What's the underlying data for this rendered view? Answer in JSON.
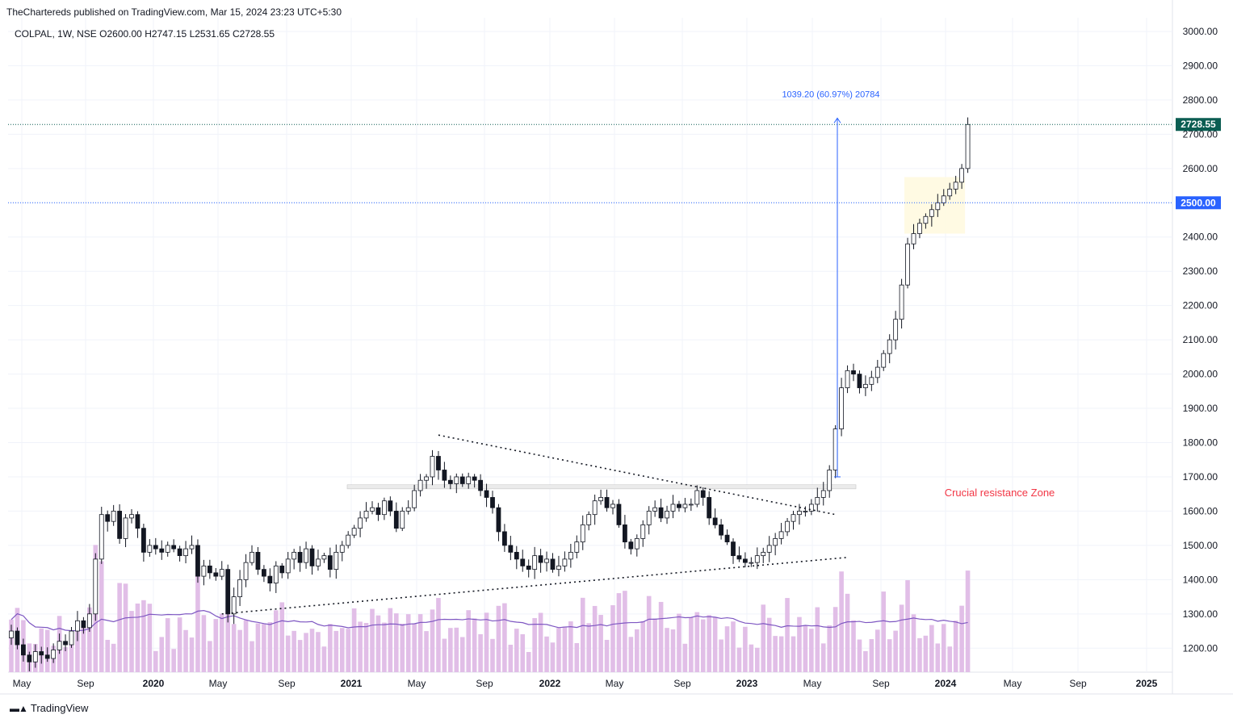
{
  "header": {
    "publish_line": "TheChartereds published on TradingView.com, Mar 15, 2024 23:23 UTC+5:30"
  },
  "footer": {
    "brand": "TradingView"
  },
  "colors": {
    "up": "#26a69a",
    "down": "#ef5350",
    "volume": "#e1bee7",
    "vol_ma": "#7e57c2",
    "measure": "#2962ff",
    "resistance_label": "#f23645",
    "zone_fill": "#fff9e0"
  },
  "chart_data": {
    "type": "candlestick",
    "title": "COLPAL, 1W, NSE",
    "legend": {
      "symbol": "COLPAL, 1W, NSE",
      "open": "O2600.00",
      "high": "H2747.15",
      "low": "L2531.65",
      "close": "C2728.55"
    },
    "ylim": [
      1130,
      3040
    ],
    "y_ticks": [
      "1200.00",
      "1300.00",
      "1400.00",
      "1500.00",
      "1600.00",
      "1700.00",
      "1800.00",
      "1900.00",
      "2000.00",
      "2100.00",
      "2200.00",
      "2300.00",
      "2400.00",
      "2500.00",
      "2600.00",
      "2700.00",
      "2800.00",
      "2900.00",
      "3000.00"
    ],
    "x_ticks": [
      "May",
      "Sep",
      "2020",
      "May",
      "Sep",
      "2021",
      "May",
      "Sep",
      "2022",
      "May",
      "Sep",
      "2023",
      "May",
      "Sep",
      "2024",
      "May",
      "Sep",
      "2025"
    ],
    "last_price": {
      "value": 2728.55,
      "label": "2728.55"
    },
    "level_line": {
      "value": 2500,
      "label": "2500.00"
    },
    "measure": {
      "from": 1700,
      "to": 2747,
      "label": "1039.20 (60.97%) 20784"
    },
    "resistance_zone": {
      "low": 1665,
      "high": 1677,
      "label": "Crucial resistance Zone"
    },
    "trendlines": [
      {
        "name": "descending",
        "from": {
          "week": 71,
          "price": 1822
        },
        "to": {
          "week": 137,
          "price": 1590
        }
      },
      {
        "name": "ascending",
        "from": {
          "week": 35,
          "price": 1300
        },
        "to": {
          "week": 139,
          "price": 1465
        }
      }
    ],
    "consolidation_box": {
      "from_week": 149,
      "to_week": 158,
      "low": 2410,
      "high": 2575
    },
    "closes": [
      1250,
      1210,
      1180,
      1160,
      1190,
      1180,
      1170,
      1195,
      1220,
      1210,
      1250,
      1280,
      1260,
      1300,
      1460,
      1590,
      1570,
      1600,
      1520,
      1580,
      1590,
      1550,
      1480,
      1500,
      1490,
      1480,
      1500,
      1490,
      1470,
      1490,
      1500,
      1410,
      1440,
      1420,
      1410,
      1430,
      1300,
      1350,
      1400,
      1450,
      1480,
      1430,
      1410,
      1390,
      1440,
      1420,
      1460,
      1480,
      1450,
      1490,
      1440,
      1460,
      1470,
      1430,
      1480,
      1500,
      1530,
      1550,
      1580,
      1600,
      1610,
      1590,
      1630,
      1600,
      1550,
      1600,
      1610,
      1660,
      1690,
      1700,
      1760,
      1720,
      1690,
      1680,
      1700,
      1680,
      1700,
      1690,
      1660,
      1640,
      1610,
      1540,
      1500,
      1480,
      1460,
      1440,
      1430,
      1470,
      1450,
      1460,
      1430,
      1440,
      1460,
      1480,
      1510,
      1560,
      1590,
      1630,
      1640,
      1610,
      1620,
      1560,
      1510,
      1490,
      1520,
      1560,
      1600,
      1610,
      1580,
      1600,
      1620,
      1610,
      1620,
      1620,
      1660,
      1640,
      1580,
      1560,
      1530,
      1510,
      1470,
      1460,
      1450,
      1450,
      1470,
      1480,
      1500,
      1520,
      1540,
      1570,
      1590,
      1600,
      1600,
      1620,
      1640,
      1660,
      1720,
      1840,
      1960,
      2010,
      2000,
      1960,
      1970,
      1990,
      2020,
      2060,
      2100,
      2160,
      2260,
      2380,
      2410,
      2440,
      2460,
      2480,
      2500,
      2520,
      2540,
      2560,
      2600,
      2728.55
    ]
  }
}
